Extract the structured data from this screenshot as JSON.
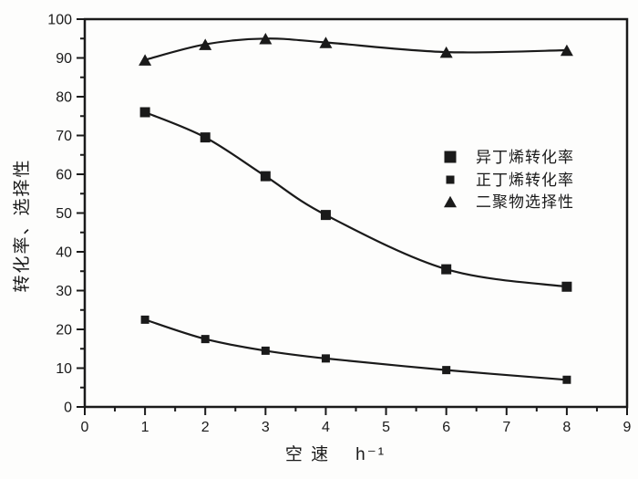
{
  "figure": {
    "background": "#fdfdfc",
    "ink": "#1a1a1a"
  },
  "chart_data": {
    "type": "line",
    "title": "",
    "x": [
      1,
      2,
      3,
      4,
      6,
      8
    ],
    "series": [
      {
        "id": "isobutylene-conversion",
        "name": "异丁烯转化率",
        "marker": "square",
        "marker_size": 11,
        "legend_marker_size": 13,
        "values": [
          76,
          69.5,
          59.5,
          49.5,
          35.5,
          31
        ]
      },
      {
        "id": "n-butene-conversion",
        "name": "正丁烯转化率",
        "marker": "square",
        "marker_size": 9,
        "legend_marker_size": 9,
        "values": [
          22.5,
          17.5,
          14.5,
          12.5,
          9.5,
          7
        ]
      },
      {
        "id": "dimer-selectivity",
        "name": "二聚物选择性",
        "marker": "triangle",
        "marker_size": 14,
        "legend_marker_size": 14,
        "values": [
          89.5,
          93.5,
          95,
          94,
          91.5,
          92
        ]
      }
    ],
    "xlabel": "空 速",
    "xlabel_unit": "h⁻¹",
    "ylabel": "转化率、选择性",
    "xlim": [
      0,
      9
    ],
    "ylim": [
      0,
      100
    ],
    "x_major_ticks": [
      0,
      1,
      2,
      3,
      4,
      5,
      6,
      7,
      8,
      9
    ],
    "x_minor_step": 0.5,
    "y_major_ticks": [
      0,
      10,
      20,
      30,
      40,
      50,
      60,
      70,
      80,
      90,
      100
    ],
    "y_minor_step": 5,
    "grid": false,
    "legend_position": "center-right",
    "line_color": "#1a1a1a",
    "frame": true
  }
}
